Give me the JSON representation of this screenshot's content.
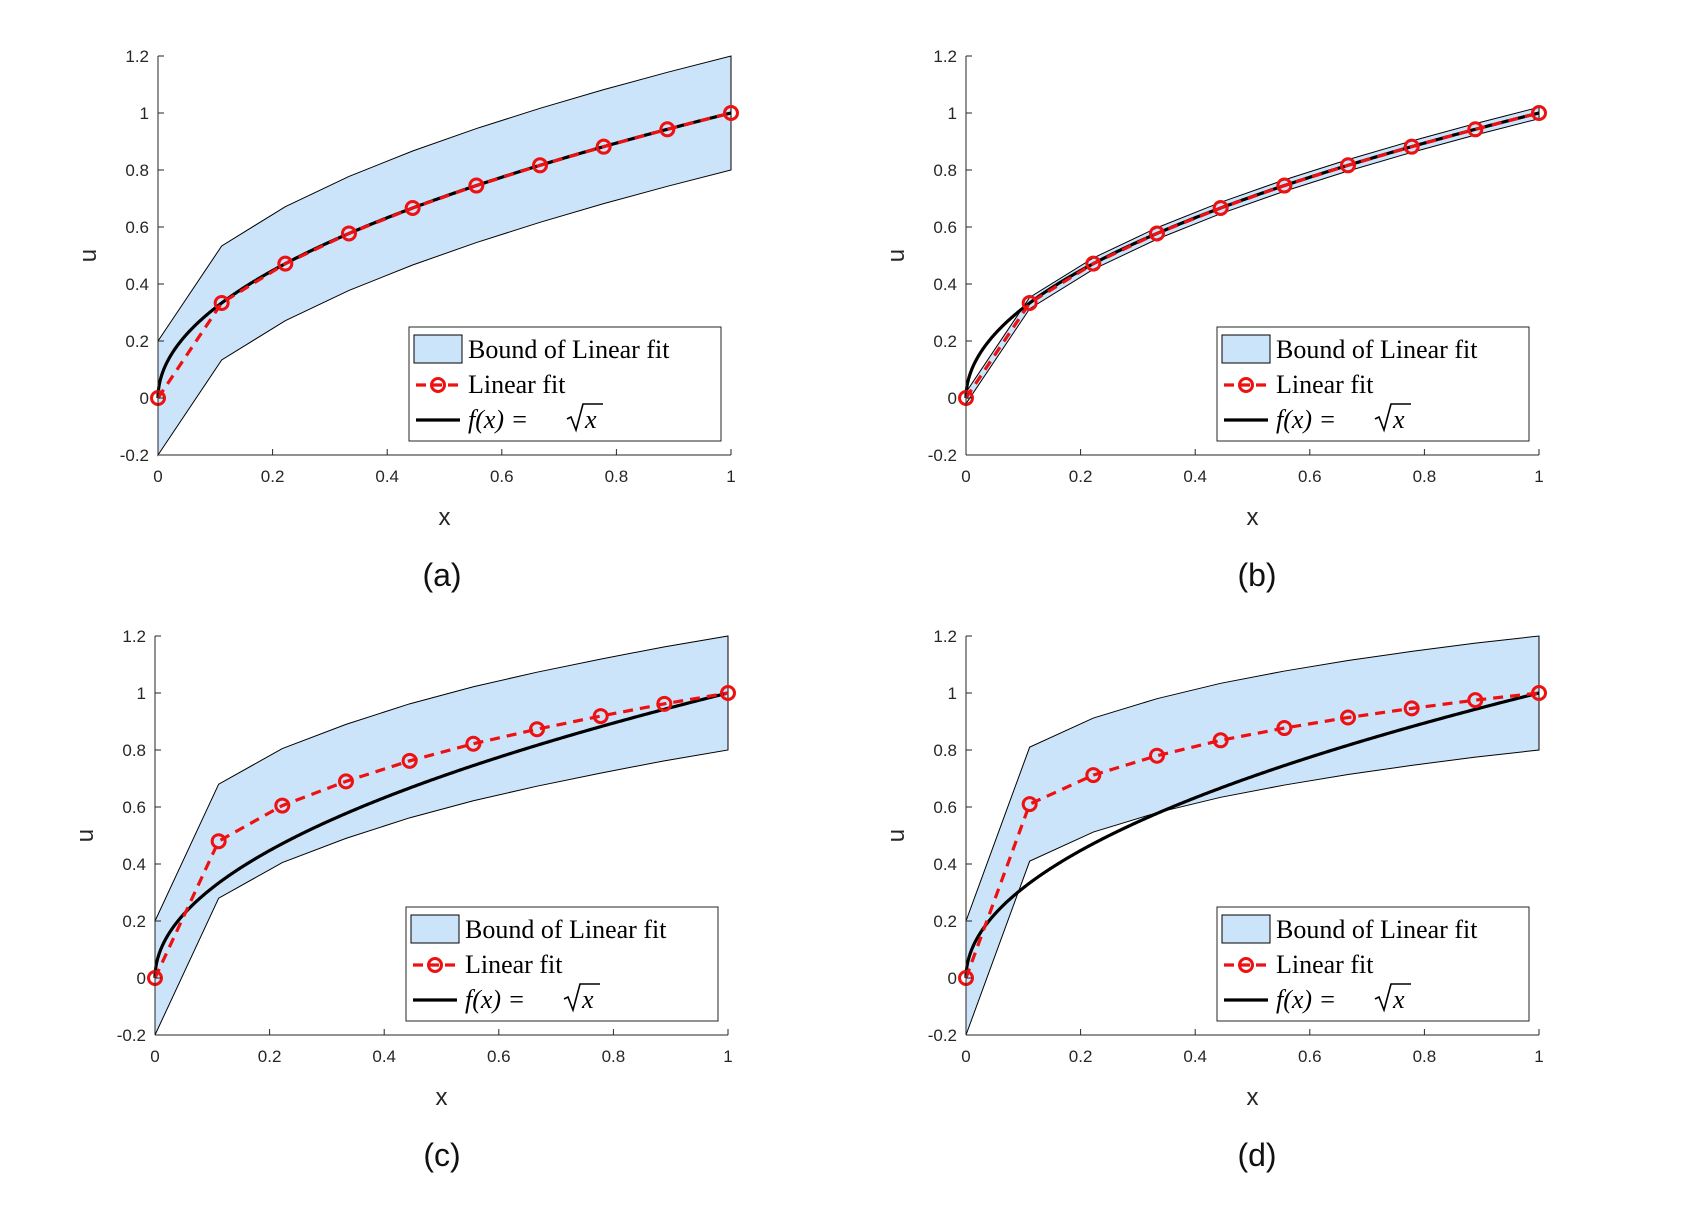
{
  "chart_data": [
    {
      "type": "line",
      "caption": "(a)",
      "xlabel": "x",
      "ylabel": "u",
      "xlim": [
        0,
        1
      ],
      "ylim": [
        -0.2,
        1.2
      ],
      "xticks": [
        "0",
        "0.2",
        "0.4",
        "0.6",
        "0.8",
        "1"
      ],
      "yticks": [
        "-0.2",
        "0",
        "0.2",
        "0.4",
        "0.6",
        "0.8",
        "1",
        "1.2"
      ],
      "legend_position": "bottom-right",
      "bound_width": 0.2,
      "series": [
        {
          "name": "Bound of Linear fit",
          "kind": "band",
          "color": "#cce4fa"
        },
        {
          "name": "Linear fit",
          "kind": "dashed-markers",
          "color": "#ee1111",
          "x": [
            0,
            0.1111,
            0.2222,
            0.3333,
            0.4444,
            0.5556,
            0.6667,
            0.7778,
            0.8889,
            1.0
          ],
          "y": [
            0,
            0.3333,
            0.4714,
            0.5774,
            0.6667,
            0.7454,
            0.8165,
            0.8819,
            0.9428,
            1.0
          ]
        },
        {
          "name": "f(x) = √x",
          "kind": "function",
          "color": "#000000"
        }
      ]
    },
    {
      "type": "line",
      "caption": "(b)",
      "xlabel": "x",
      "ylabel": "u",
      "xlim": [
        0,
        1
      ],
      "ylim": [
        -0.2,
        1.2
      ],
      "xticks": [
        "0",
        "0.2",
        "0.4",
        "0.6",
        "0.8",
        "1"
      ],
      "yticks": [
        "-0.2",
        "0",
        "0.2",
        "0.4",
        "0.6",
        "0.8",
        "1",
        "1.2"
      ],
      "legend_position": "bottom-right",
      "bound_width": 0.02,
      "series": [
        {
          "name": "Bound of Linear fit",
          "kind": "band",
          "color": "#cce4fa"
        },
        {
          "name": "Linear fit",
          "kind": "dashed-markers",
          "color": "#ee1111",
          "x": [
            0,
            0.1111,
            0.2222,
            0.3333,
            0.4444,
            0.5556,
            0.6667,
            0.7778,
            0.8889,
            1.0
          ],
          "y": [
            0,
            0.3333,
            0.4714,
            0.5774,
            0.6667,
            0.7454,
            0.8165,
            0.8819,
            0.9428,
            1.0
          ]
        },
        {
          "name": "f(x) = √x",
          "kind": "function",
          "color": "#000000"
        }
      ]
    },
    {
      "type": "line",
      "caption": "(c)",
      "xlabel": "x",
      "ylabel": "u",
      "xlim": [
        0,
        1
      ],
      "ylim": [
        -0.2,
        1.2
      ],
      "xticks": [
        "0",
        "0.2",
        "0.4",
        "0.6",
        "0.8",
        "1"
      ],
      "yticks": [
        "-0.2",
        "0",
        "0.2",
        "0.4",
        "0.6",
        "0.8",
        "1",
        "1.2"
      ],
      "legend_position": "bottom-right",
      "bound_width": 0.2,
      "series": [
        {
          "name": "Bound of Linear fit",
          "kind": "band",
          "color": "#cce4fa"
        },
        {
          "name": "Linear fit",
          "kind": "dashed-markers",
          "color": "#ee1111",
          "x": [
            0,
            0.1111,
            0.2222,
            0.3333,
            0.4444,
            0.5556,
            0.6667,
            0.7778,
            0.8889,
            1.0
          ],
          "y": [
            0,
            0.48,
            0.605,
            0.69,
            0.762,
            0.822,
            0.873,
            0.919,
            0.962,
            1.0
          ]
        },
        {
          "name": "f(x) = √x",
          "kind": "function",
          "color": "#000000"
        }
      ]
    },
    {
      "type": "line",
      "caption": "(d)",
      "xlabel": "x",
      "ylabel": "u",
      "xlim": [
        0,
        1
      ],
      "ylim": [
        -0.2,
        1.2
      ],
      "xticks": [
        "0",
        "0.2",
        "0.4",
        "0.6",
        "0.8",
        "1"
      ],
      "yticks": [
        "-0.2",
        "0",
        "0.2",
        "0.4",
        "0.6",
        "0.8",
        "1",
        "1.2"
      ],
      "legend_position": "bottom-right",
      "bound_width": 0.2,
      "series": [
        {
          "name": "Bound of Linear fit",
          "kind": "band",
          "color": "#cce4fa"
        },
        {
          "name": "Linear fit",
          "kind": "dashed-markers",
          "color": "#ee1111",
          "x": [
            0,
            0.1111,
            0.2222,
            0.3333,
            0.4444,
            0.5556,
            0.6667,
            0.7778,
            0.8889,
            1.0
          ],
          "y": [
            0,
            0.61,
            0.712,
            0.78,
            0.834,
            0.877,
            0.914,
            0.946,
            0.975,
            1.0
          ]
        },
        {
          "name": "f(x) = √x",
          "kind": "function",
          "color": "#000000"
        }
      ]
    }
  ],
  "legend_labels": {
    "band": "Bound of Linear fit",
    "linear": "Linear fit",
    "func_lhs": "f(x) = ",
    "func_rhs": "x"
  }
}
